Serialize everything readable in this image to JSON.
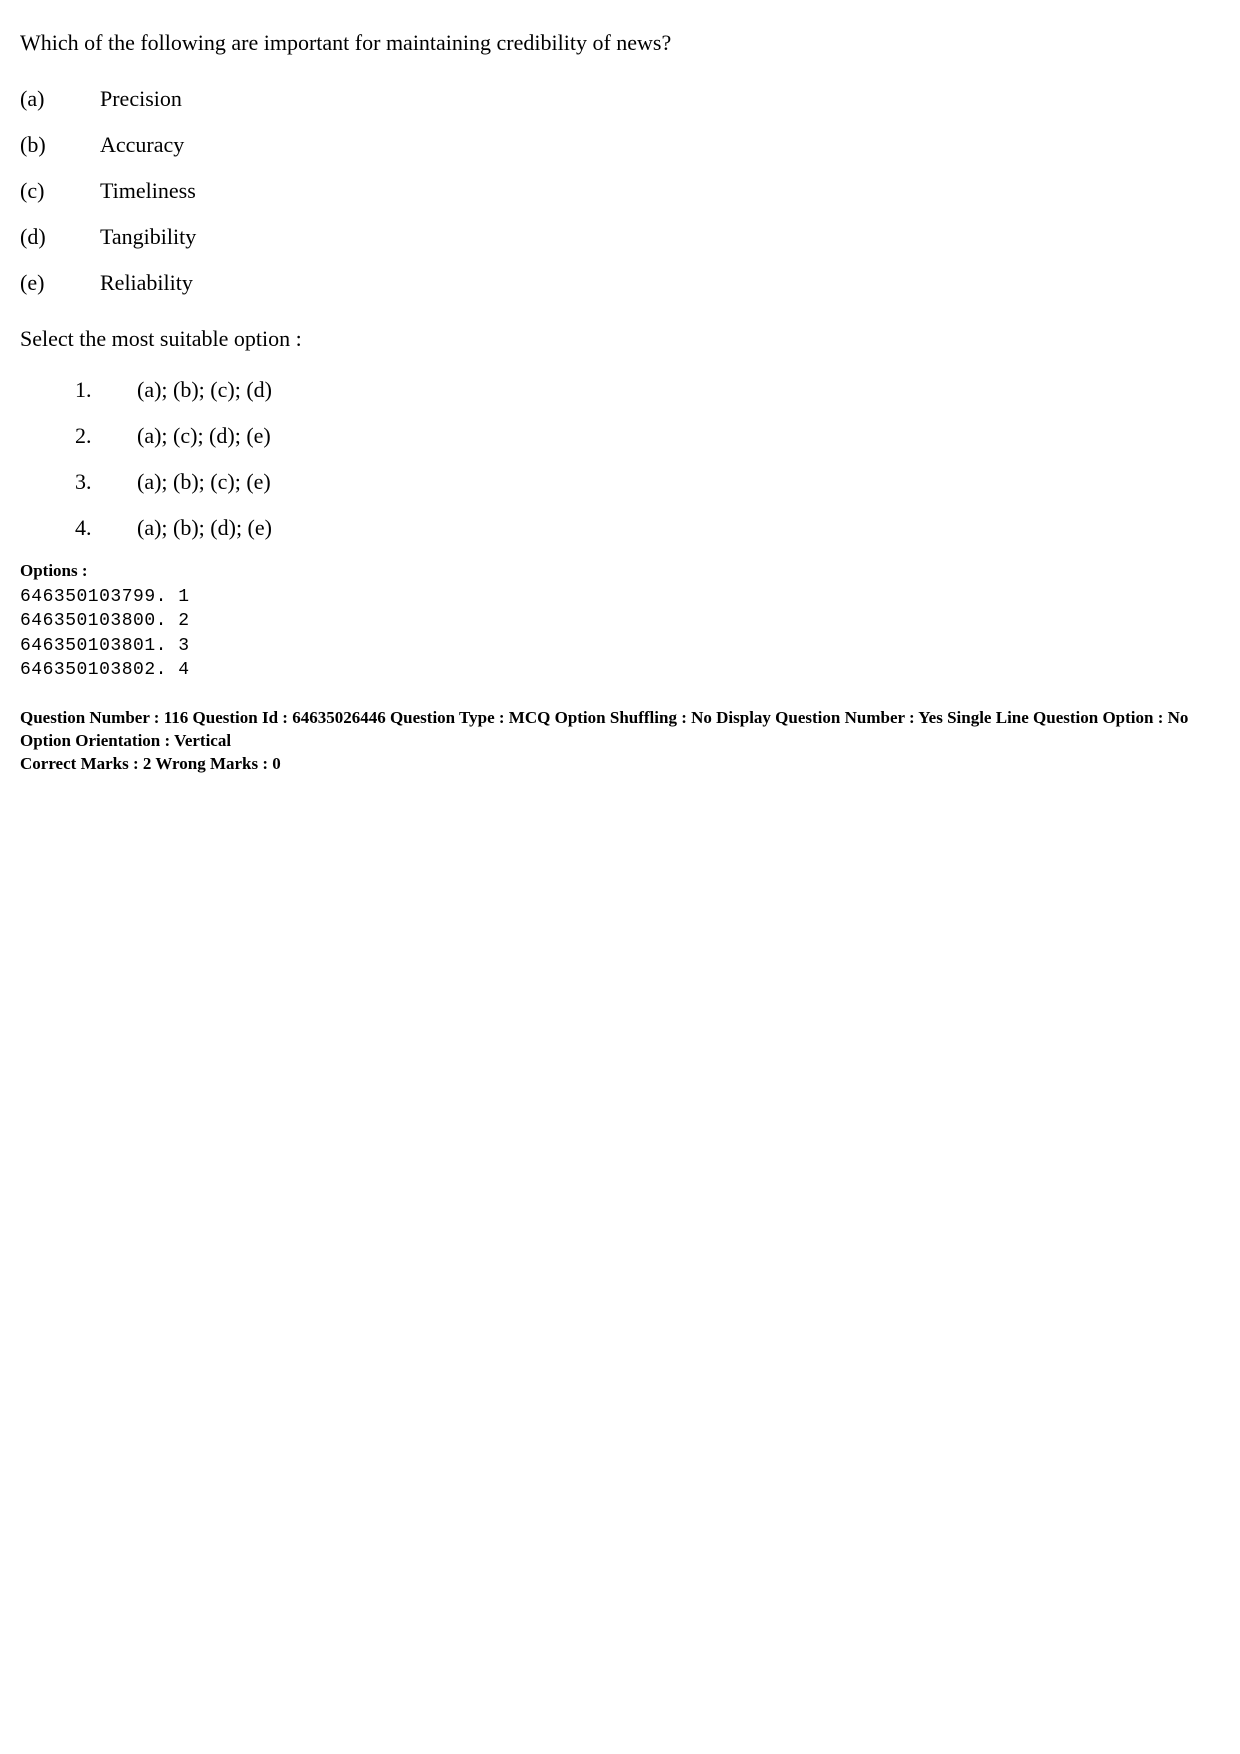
{
  "question": {
    "stem": "Which of the following are important for maintaining credibility of news?",
    "items": [
      {
        "label": "(a)",
        "text": "Precision"
      },
      {
        "label": "(b)",
        "text": "Accuracy"
      },
      {
        "label": "(c)",
        "text": "Timeliness"
      },
      {
        "label": "(d)",
        "text": "Tangibility"
      },
      {
        "label": "(e)",
        "text": "Reliability"
      }
    ],
    "select_instruction": "Select the most suitable option  :",
    "answers": [
      {
        "num": "1.",
        "text": "(a); (b); (c); (d)"
      },
      {
        "num": "2.",
        "text": "(a); (c); (d); (e)"
      },
      {
        "num": "3.",
        "text": "(a); (b); (c); (e)"
      },
      {
        "num": "4.",
        "text": "(a); (b); (d); (e)"
      }
    ]
  },
  "options_block": {
    "heading": "Options :",
    "rows": [
      "646350103799. 1",
      "646350103800. 2",
      "646350103801. 3",
      "646350103802. 4"
    ]
  },
  "meta": {
    "line1": "Question Number : 116  Question Id : 64635026446  Question Type : MCQ  Option Shuffling : No  Display Question Number : Yes  Single Line Question Option : No  Option Orientation : Vertical",
    "line2": "Correct Marks : 2  Wrong Marks : 0"
  }
}
